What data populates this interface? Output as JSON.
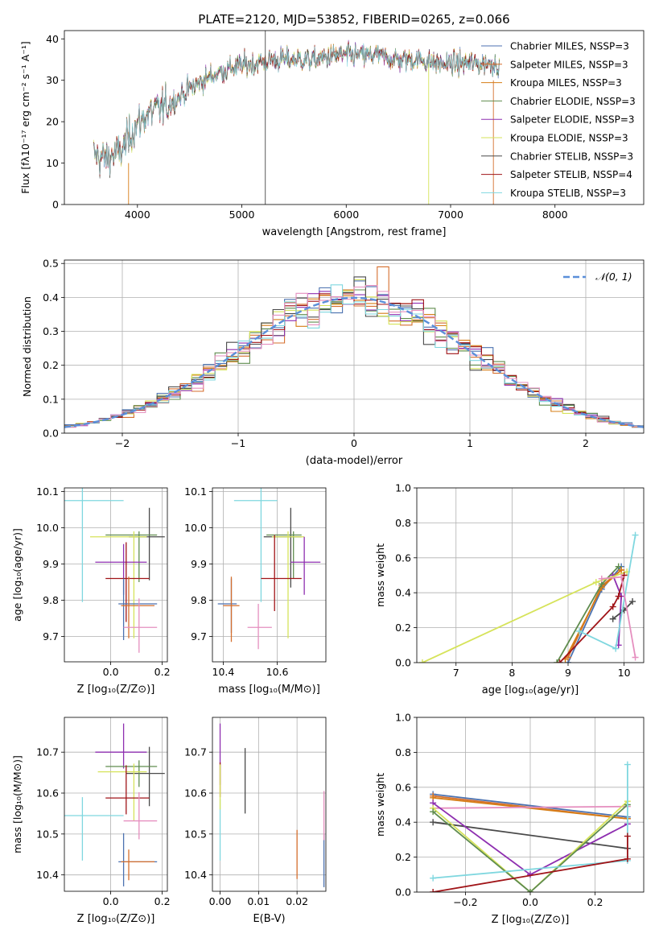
{
  "chart_data": [
    {
      "type": "line",
      "title": "PLATE=2120, MJD=53852, FIBERID=0265, z=0.066",
      "xlabel": "wavelength [Angstrom, rest frame]",
      "ylabel": "Flux [fλ10⁻¹⁷ erg cm⁻² s⁻¹ A⁻¹]",
      "xlim": [
        3300,
        8850
      ],
      "ylim": [
        0,
        42
      ],
      "x_ticks": [
        "4000",
        "5000",
        "6000",
        "7000",
        "8000"
      ],
      "y_ticks": [
        "0",
        "10",
        "20",
        "30",
        "40"
      ],
      "grid": false,
      "legend_position": "upper-right",
      "continuum_shape": {
        "wavelength": [
          3580,
          3700,
          3850,
          3950,
          4100,
          4300,
          4500,
          4700,
          4900,
          5100,
          5300,
          5500,
          5700,
          5900,
          6100,
          6300,
          6500,
          6700,
          6900,
          7100,
          7300,
          7500
        ],
        "flux": [
          12,
          11,
          13,
          18,
          22,
          24,
          28,
          31,
          33,
          34,
          35,
          35,
          35,
          36,
          36,
          36,
          35,
          35,
          34,
          34,
          34,
          34
        ]
      },
      "series": [
        {
          "name": "Chabrier MILES, NSSP=3",
          "color": "#4c72b0"
        },
        {
          "name": "Salpeter MILES, NSSP=3",
          "color": "#d56f2e"
        },
        {
          "name": "Kroupa MILES, NSSP=3",
          "color": "#d67d16"
        },
        {
          "name": "Chabrier ELODIE, NSSP=3",
          "color": "#5f8c4e"
        },
        {
          "name": "Salpeter ELODIE, NSSP=3",
          "color": "#8e2fb0"
        },
        {
          "name": "Kroupa ELODIE, NSSP=3",
          "color": "#d6e35a"
        },
        {
          "name": "Chabrier STELIB, NSSP=3",
          "color": "#4a4a4a"
        },
        {
          "name": "Salpeter STELIB, NSSP=4",
          "color": "#a01418"
        },
        {
          "name": "Kroupa STELIB, NSSP=3",
          "color": "#7fd7df"
        }
      ]
    },
    {
      "type": "line",
      "xlabel": "(data-model)/error",
      "ylabel": "Normed distribution",
      "xlim": [
        -2.5,
        2.5
      ],
      "ylim": [
        0,
        0.51
      ],
      "x_ticks": [
        "−2",
        "−1",
        "0",
        "1",
        "2"
      ],
      "y_ticks": [
        "0.0",
        "0.1",
        "0.2",
        "0.3",
        "0.4",
        "0.5"
      ],
      "grid": true,
      "legend": [
        "𝒩(0, 1)"
      ],
      "legend_position": "upper-right",
      "reference_curve": {
        "name": "𝒩(0, 1)",
        "mean": 0,
        "sigma": 1,
        "color": "#5b8fd9"
      }
    },
    {
      "type": "scatter",
      "xlabel": "Z [log₁₀(Z/Z⊙)]",
      "ylabel": "age  [log₁₀(age/yr)]",
      "xlim": [
        -0.18,
        0.22
      ],
      "ylim": [
        9.63,
        10.11
      ],
      "x_ticks": [
        "0.0",
        "0.2"
      ],
      "y_ticks": [
        "9.7",
        "9.8",
        "9.9",
        "10.0",
        "10.1"
      ],
      "grid": true,
      "errorbars": [
        {
          "x": -0.11,
          "y": 10.075,
          "xerr": [
            0.11,
            0.16
          ],
          "yerr": [
            0.28,
            0.035
          ],
          "color": "#7fd7df"
        },
        {
          "x": 0.15,
          "y": 9.975,
          "xerr": [
            0.08,
            0.06
          ],
          "yerr": [
            0.12,
            0.08
          ],
          "color": "#4a4a4a"
        },
        {
          "x": 0.11,
          "y": 9.98,
          "xerr": [
            0.13,
            0.07
          ],
          "yerr": [
            0.13,
            0.01
          ],
          "color": "#5f8c4e"
        },
        {
          "x": 0.09,
          "y": 9.975,
          "xerr": [
            0.17,
            0.05
          ],
          "yerr": [
            0.28,
            0.015
          ],
          "color": "#d6e35a"
        },
        {
          "x": 0.05,
          "y": 9.905,
          "xerr": [
            0.11,
            0.09
          ],
          "yerr": [
            0.09,
            0.05
          ],
          "color": "#8e2fb0"
        },
        {
          "x": 0.06,
          "y": 9.86,
          "xerr": [
            0.08,
            0.09
          ],
          "yerr": [
            0.12,
            0.1
          ],
          "color": "#a01418"
        },
        {
          "x": 0.05,
          "y": 9.79,
          "xerr": [
            0.02,
            0.13
          ],
          "yerr": [
            0.1,
            0.07
          ],
          "color": "#4c72b0"
        },
        {
          "x": 0.07,
          "y": 9.785,
          "xerr": [
            0.03,
            0.1
          ],
          "yerr": [
            0.09,
            0.08
          ],
          "color": "#d56f2e"
        },
        {
          "x": 0.11,
          "y": 9.725,
          "xerr": [
            0.06,
            0.07
          ],
          "yerr": [
            0.07,
            0.08
          ],
          "color": "#e58fbf"
        }
      ]
    },
    {
      "type": "scatter",
      "xlabel": "mass [log₁₀(M/M⊙)]",
      "xlim": [
        10.36,
        10.78
      ],
      "ylim": [
        9.63,
        10.11
      ],
      "x_ticks": [
        "10.4",
        "10.6"
      ],
      "y_ticks": [
        "9.7",
        "9.8",
        "9.9",
        "10.0",
        "10.1"
      ],
      "grid": true,
      "errorbars": [
        {
          "x": 10.54,
          "y": 10.075,
          "xerr": [
            0.1,
            0.06
          ],
          "yerr": [
            0.28,
            0.035
          ],
          "color": "#7fd7df"
        },
        {
          "x": 10.65,
          "y": 9.975,
          "xerr": [
            0.1,
            0.04
          ],
          "yerr": [
            0.14,
            0.08
          ],
          "color": "#4a4a4a"
        },
        {
          "x": 10.66,
          "y": 9.98,
          "xerr": [
            0.1,
            0.03
          ],
          "yerr": [
            0.12,
            0.01
          ],
          "color": "#5f8c4e"
        },
        {
          "x": 10.64,
          "y": 9.975,
          "xerr": [
            0.06,
            0.06
          ],
          "yerr": [
            0.28,
            0.015
          ],
          "color": "#d6e35a"
        },
        {
          "x": 10.7,
          "y": 9.905,
          "xerr": [
            0.05,
            0.06
          ],
          "yerr": [
            0.09,
            0.07
          ],
          "color": "#8e2fb0"
        },
        {
          "x": 10.59,
          "y": 9.86,
          "xerr": [
            0.05,
            0.1
          ],
          "yerr": [
            0.09,
            0.12
          ],
          "color": "#a01418"
        },
        {
          "x": 10.43,
          "y": 9.79,
          "xerr": [
            0.05,
            0.02
          ],
          "yerr": [
            0.08,
            0.07
          ],
          "color": "#4c72b0"
        },
        {
          "x": 10.43,
          "y": 9.785,
          "xerr": [
            0.03,
            0.03
          ],
          "yerr": [
            0.1,
            0.08
          ],
          "color": "#d56f2e"
        },
        {
          "x": 10.53,
          "y": 9.725,
          "xerr": [
            0.04,
            0.05
          ],
          "yerr": [
            0.06,
            0.065
          ],
          "color": "#e58fbf"
        }
      ]
    },
    {
      "type": "line",
      "xlabel": "age  [log₁₀(age/yr)]",
      "ylabel": "mass weight",
      "xlim": [
        6.3,
        10.35
      ],
      "ylim": [
        0,
        1.0
      ],
      "x_ticks": [
        "7",
        "8",
        "9",
        "10"
      ],
      "y_ticks": [
        "0.0",
        "0.2",
        "0.4",
        "0.6",
        "0.8",
        "1.0"
      ],
      "grid": true,
      "series": [
        {
          "color": "#4c72b0",
          "x": [
            9.0,
            9.6,
            9.95
          ],
          "y": [
            0.0,
            0.42,
            0.55
          ]
        },
        {
          "color": "#d56f2e",
          "x": [
            9.0,
            9.6,
            9.95
          ],
          "y": [
            0.03,
            0.44,
            0.53
          ]
        },
        {
          "color": "#d67d16",
          "x": [
            8.95,
            9.6,
            9.95
          ],
          "y": [
            0.02,
            0.43,
            0.53
          ]
        },
        {
          "color": "#5f8c4e",
          "x": [
            8.8,
            9.6,
            9.9
          ],
          "y": [
            0.0,
            0.45,
            0.55
          ]
        },
        {
          "color": "#8e2fb0",
          "x": [
            9.8,
            9.95,
            9.9
          ],
          "y": [
            0.5,
            0.38,
            0.1
          ]
        },
        {
          "color": "#d6e35a",
          "x": [
            6.4,
            9.5,
            10.05
          ],
          "y": [
            0.0,
            0.46,
            0.52
          ]
        },
        {
          "color": "#4a4a4a",
          "x": [
            9.8,
            10.0,
            10.15
          ],
          "y": [
            0.25,
            0.3,
            0.35
          ]
        },
        {
          "color": "#a01418",
          "x": [
            8.85,
            9.8,
            9.9,
            10.0
          ],
          "y": [
            0.0,
            0.32,
            0.38,
            0.5
          ]
        },
        {
          "color": "#7fd7df",
          "x": [
            9.2,
            9.85,
            10.2
          ],
          "y": [
            0.18,
            0.08,
            0.73
          ]
        },
        {
          "color": "#e58fbf",
          "x": [
            9.6,
            9.95,
            10.2
          ],
          "y": [
            0.48,
            0.49,
            0.03
          ]
        }
      ]
    },
    {
      "type": "scatter",
      "xlabel": "Z [log₁₀(Z/Z⊙)]",
      "ylabel": "mass [log₁₀(M/M⊙)]",
      "xlim": [
        -0.18,
        0.22
      ],
      "ylim": [
        10.36,
        10.785
      ],
      "x_ticks": [
        "0.0",
        "0.2"
      ],
      "y_ticks": [
        "10.4",
        "10.5",
        "10.6",
        "10.7"
      ],
      "grid": true,
      "errorbars": [
        {
          "x": 0.05,
          "y": 10.7,
          "xerr": [
            0.11,
            0.09
          ],
          "yerr": [
            0.04,
            0.07
          ],
          "color": "#8e2fb0"
        },
        {
          "x": 0.15,
          "y": 10.648,
          "xerr": [
            0.09,
            0.06
          ],
          "yerr": [
            0.08,
            0.065
          ],
          "color": "#4a4a4a"
        },
        {
          "x": 0.11,
          "y": 10.665,
          "xerr": [
            0.13,
            0.07
          ],
          "yerr": [
            0.05,
            0.015
          ],
          "color": "#5f8c4e"
        },
        {
          "x": 0.09,
          "y": 10.652,
          "xerr": [
            0.14,
            0.05
          ],
          "yerr": [
            0.12,
            0.02
          ],
          "color": "#d6e35a"
        },
        {
          "x": 0.06,
          "y": 10.588,
          "xerr": [
            0.08,
            0.09
          ],
          "yerr": [
            0.04,
            0.08
          ],
          "color": "#a01418"
        },
        {
          "x": -0.11,
          "y": 10.545,
          "xerr": [
            0.11,
            0.16
          ],
          "yerr": [
            0.11,
            0.045
          ],
          "color": "#7fd7df"
        },
        {
          "x": 0.11,
          "y": 10.532,
          "xerr": [
            0.06,
            0.07
          ],
          "yerr": [
            0.045,
            0.07
          ],
          "color": "#e58fbf"
        },
        {
          "x": 0.05,
          "y": 10.432,
          "xerr": [
            0.02,
            0.13
          ],
          "yerr": [
            0.06,
            0.07
          ],
          "color": "#4c72b0"
        },
        {
          "x": 0.07,
          "y": 10.432,
          "xerr": [
            0.03,
            0.1
          ],
          "yerr": [
            0.045,
            0.03
          ],
          "color": "#d56f2e"
        }
      ]
    },
    {
      "type": "scatter",
      "xlabel": "E(B-V)",
      "xlim": [
        -0.002,
        0.0275
      ],
      "ylim": [
        10.36,
        10.785
      ],
      "x_ticks": [
        "0.00",
        "0.01",
        "0.02"
      ],
      "y_ticks": [
        "10.4",
        "10.5",
        "10.6",
        "10.7"
      ],
      "grid": true,
      "errorbars": [
        {
          "x": 0.0,
          "y": 10.7,
          "yerr": [
            0.08,
            0.07
          ],
          "color": "#8e2fb0"
        },
        {
          "x": 0.0,
          "y": 10.625,
          "yerr": [
            0.035,
            0.05
          ],
          "color": "#a01418"
        },
        {
          "x": 0.0,
          "y": 10.545,
          "yerr": [
            0.11,
            0.04
          ],
          "color": "#7fd7df"
        },
        {
          "x": 0.0,
          "y": 10.66,
          "yerr": [
            0.1,
            0.01
          ],
          "color": "#d6e35a"
        },
        {
          "x": 0.0065,
          "y": 10.63,
          "yerr": [
            0.08,
            0.08
          ],
          "color": "#4a4a4a"
        },
        {
          "x": 0.02,
          "y": 10.45,
          "yerr": [
            0.06,
            0.06
          ],
          "color": "#d56f2e"
        },
        {
          "x": 0.027,
          "y": 10.43,
          "yerr": [
            0.06,
            0.07
          ],
          "color": "#4c72b0"
        },
        {
          "x": 0.027,
          "y": 10.53,
          "yerr": [
            0.045,
            0.075
          ],
          "color": "#e58fbf"
        }
      ]
    },
    {
      "type": "line",
      "xlabel": "Z [log₁₀(Z/Z⊙)]",
      "ylabel": "mass weight",
      "xlim": [
        -0.35,
        0.35
      ],
      "ylim": [
        0,
        1.0
      ],
      "x_ticks": [
        "−0.2",
        "0.0",
        "0.2"
      ],
      "y_ticks": [
        "0.0",
        "0.2",
        "0.4",
        "0.6",
        "0.8",
        "1.0"
      ],
      "grid": true,
      "series": [
        {
          "color": "#4c72b0",
          "x": [
            -0.3,
            0.3
          ],
          "y": [
            0.56,
            0.43
          ]
        },
        {
          "color": "#d56f2e",
          "x": [
            -0.3,
            0.3
          ],
          "y": [
            0.55,
            0.42
          ]
        },
        {
          "color": "#d67d16",
          "x": [
            -0.3,
            0.3
          ],
          "y": [
            0.54,
            0.42
          ]
        },
        {
          "color": "#e58fbf",
          "x": [
            -0.3,
            0.3
          ],
          "y": [
            0.48,
            0.49
          ]
        },
        {
          "color": "#4a4a4a",
          "x": [
            -0.3,
            0.3
          ],
          "y": [
            0.4,
            0.25
          ]
        },
        {
          "color": "#8e2fb0",
          "x": [
            -0.3,
            0.0,
            0.3
          ],
          "y": [
            0.51,
            0.1,
            0.39
          ]
        },
        {
          "color": "#d6e35a",
          "x": [
            -0.3,
            0.0,
            0.3
          ],
          "y": [
            0.48,
            0.0,
            0.52
          ]
        },
        {
          "color": "#5f8c4e",
          "x": [
            -0.3,
            0.0,
            0.3
          ],
          "y": [
            0.46,
            0.0,
            0.5
          ]
        },
        {
          "color": "#7fd7df",
          "x": [
            -0.3,
            0.3,
            0.3
          ],
          "y": [
            0.08,
            0.18,
            0.73
          ]
        },
        {
          "color": "#a01418",
          "x": [
            -0.3,
            0.3,
            0.3
          ],
          "y": [
            0.0,
            0.19,
            0.32
          ]
        }
      ]
    }
  ]
}
